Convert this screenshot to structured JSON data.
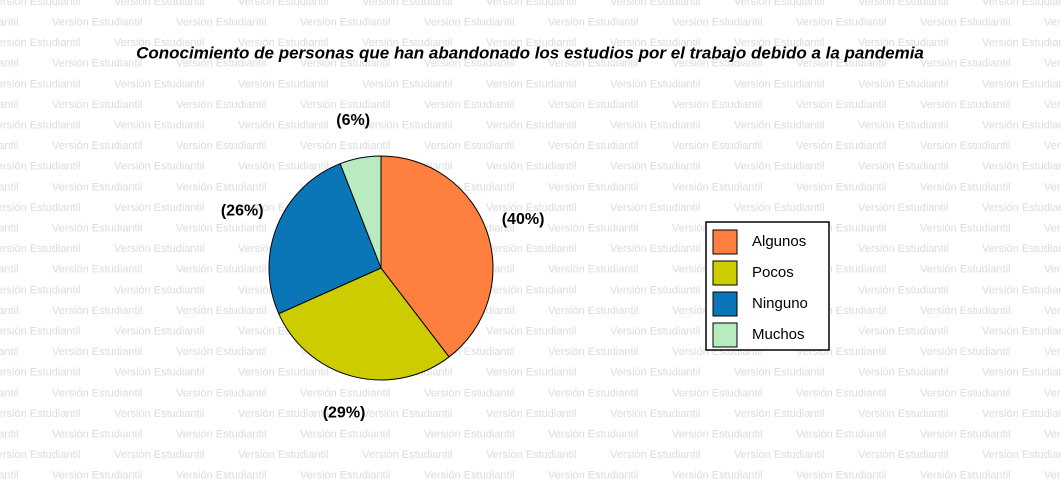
{
  "watermark": "Versión Estudiantil",
  "chart_data": {
    "type": "pie",
    "title": "Conocimiento de personas que han abandonado los estudios por el trabajo debido a la pandemia",
    "categories": [
      "Algunos",
      "Pocos",
      "Ninguno",
      "Muchos"
    ],
    "values": [
      40,
      29,
      26,
      6
    ],
    "value_labels": [
      "(40%)",
      "(29%)",
      "(26%)",
      "(6%)"
    ],
    "colors": [
      "#ff7f3f",
      "#cccc00",
      "#0a76b8",
      "#b8ecc0"
    ],
    "legend": "right"
  }
}
